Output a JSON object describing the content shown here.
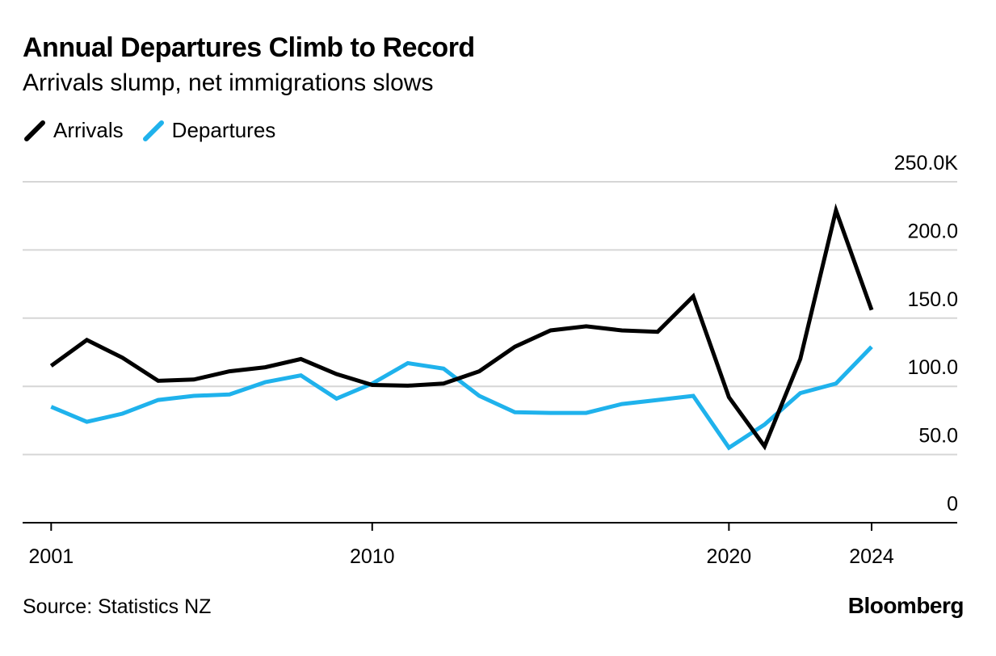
{
  "chart_data": {
    "type": "line",
    "title": "Annual Departures Climb to Record",
    "subtitle": "Arrivals slump, net immigrations slows",
    "x": [
      2001,
      2002,
      2003,
      2004,
      2005,
      2006,
      2007,
      2008,
      2009,
      2010,
      2011,
      2012,
      2013,
      2014,
      2015,
      2016,
      2017,
      2018,
      2019,
      2020,
      2021,
      2022,
      2023,
      2024
    ],
    "x_ticks": [
      2001,
      2010,
      2020,
      2024
    ],
    "x_tick_labels": [
      "2001",
      "2010",
      "2020",
      "2024"
    ],
    "y_ticks": [
      0,
      50,
      100,
      150,
      200,
      250
    ],
    "y_tick_labels": [
      "0",
      "50.0",
      "100.0",
      "150.0",
      "200.0",
      "250.0K"
    ],
    "ylim": [
      0,
      250
    ],
    "xlim": [
      2000.2,
      2026.4
    ],
    "grid": true,
    "series": [
      {
        "name": "Arrivals",
        "color": "#000000",
        "values": [
          115,
          134,
          121,
          104,
          105,
          111,
          114,
          120,
          109,
          101,
          100.5,
          102,
          111,
          129,
          141,
          144,
          141,
          140,
          166,
          92,
          56,
          120,
          229,
          156
        ]
      },
      {
        "name": "Departures",
        "color": "#1fb2ec",
        "values": [
          85,
          74,
          80,
          90,
          93,
          94,
          103,
          108,
          91,
          102,
          117,
          113,
          93,
          81,
          80.5,
          80.5,
          87,
          90,
          93,
          55,
          72,
          95,
          102,
          129
        ]
      }
    ]
  },
  "footer": {
    "source": "Source: Statistics NZ",
    "brand": "Bloomberg"
  }
}
